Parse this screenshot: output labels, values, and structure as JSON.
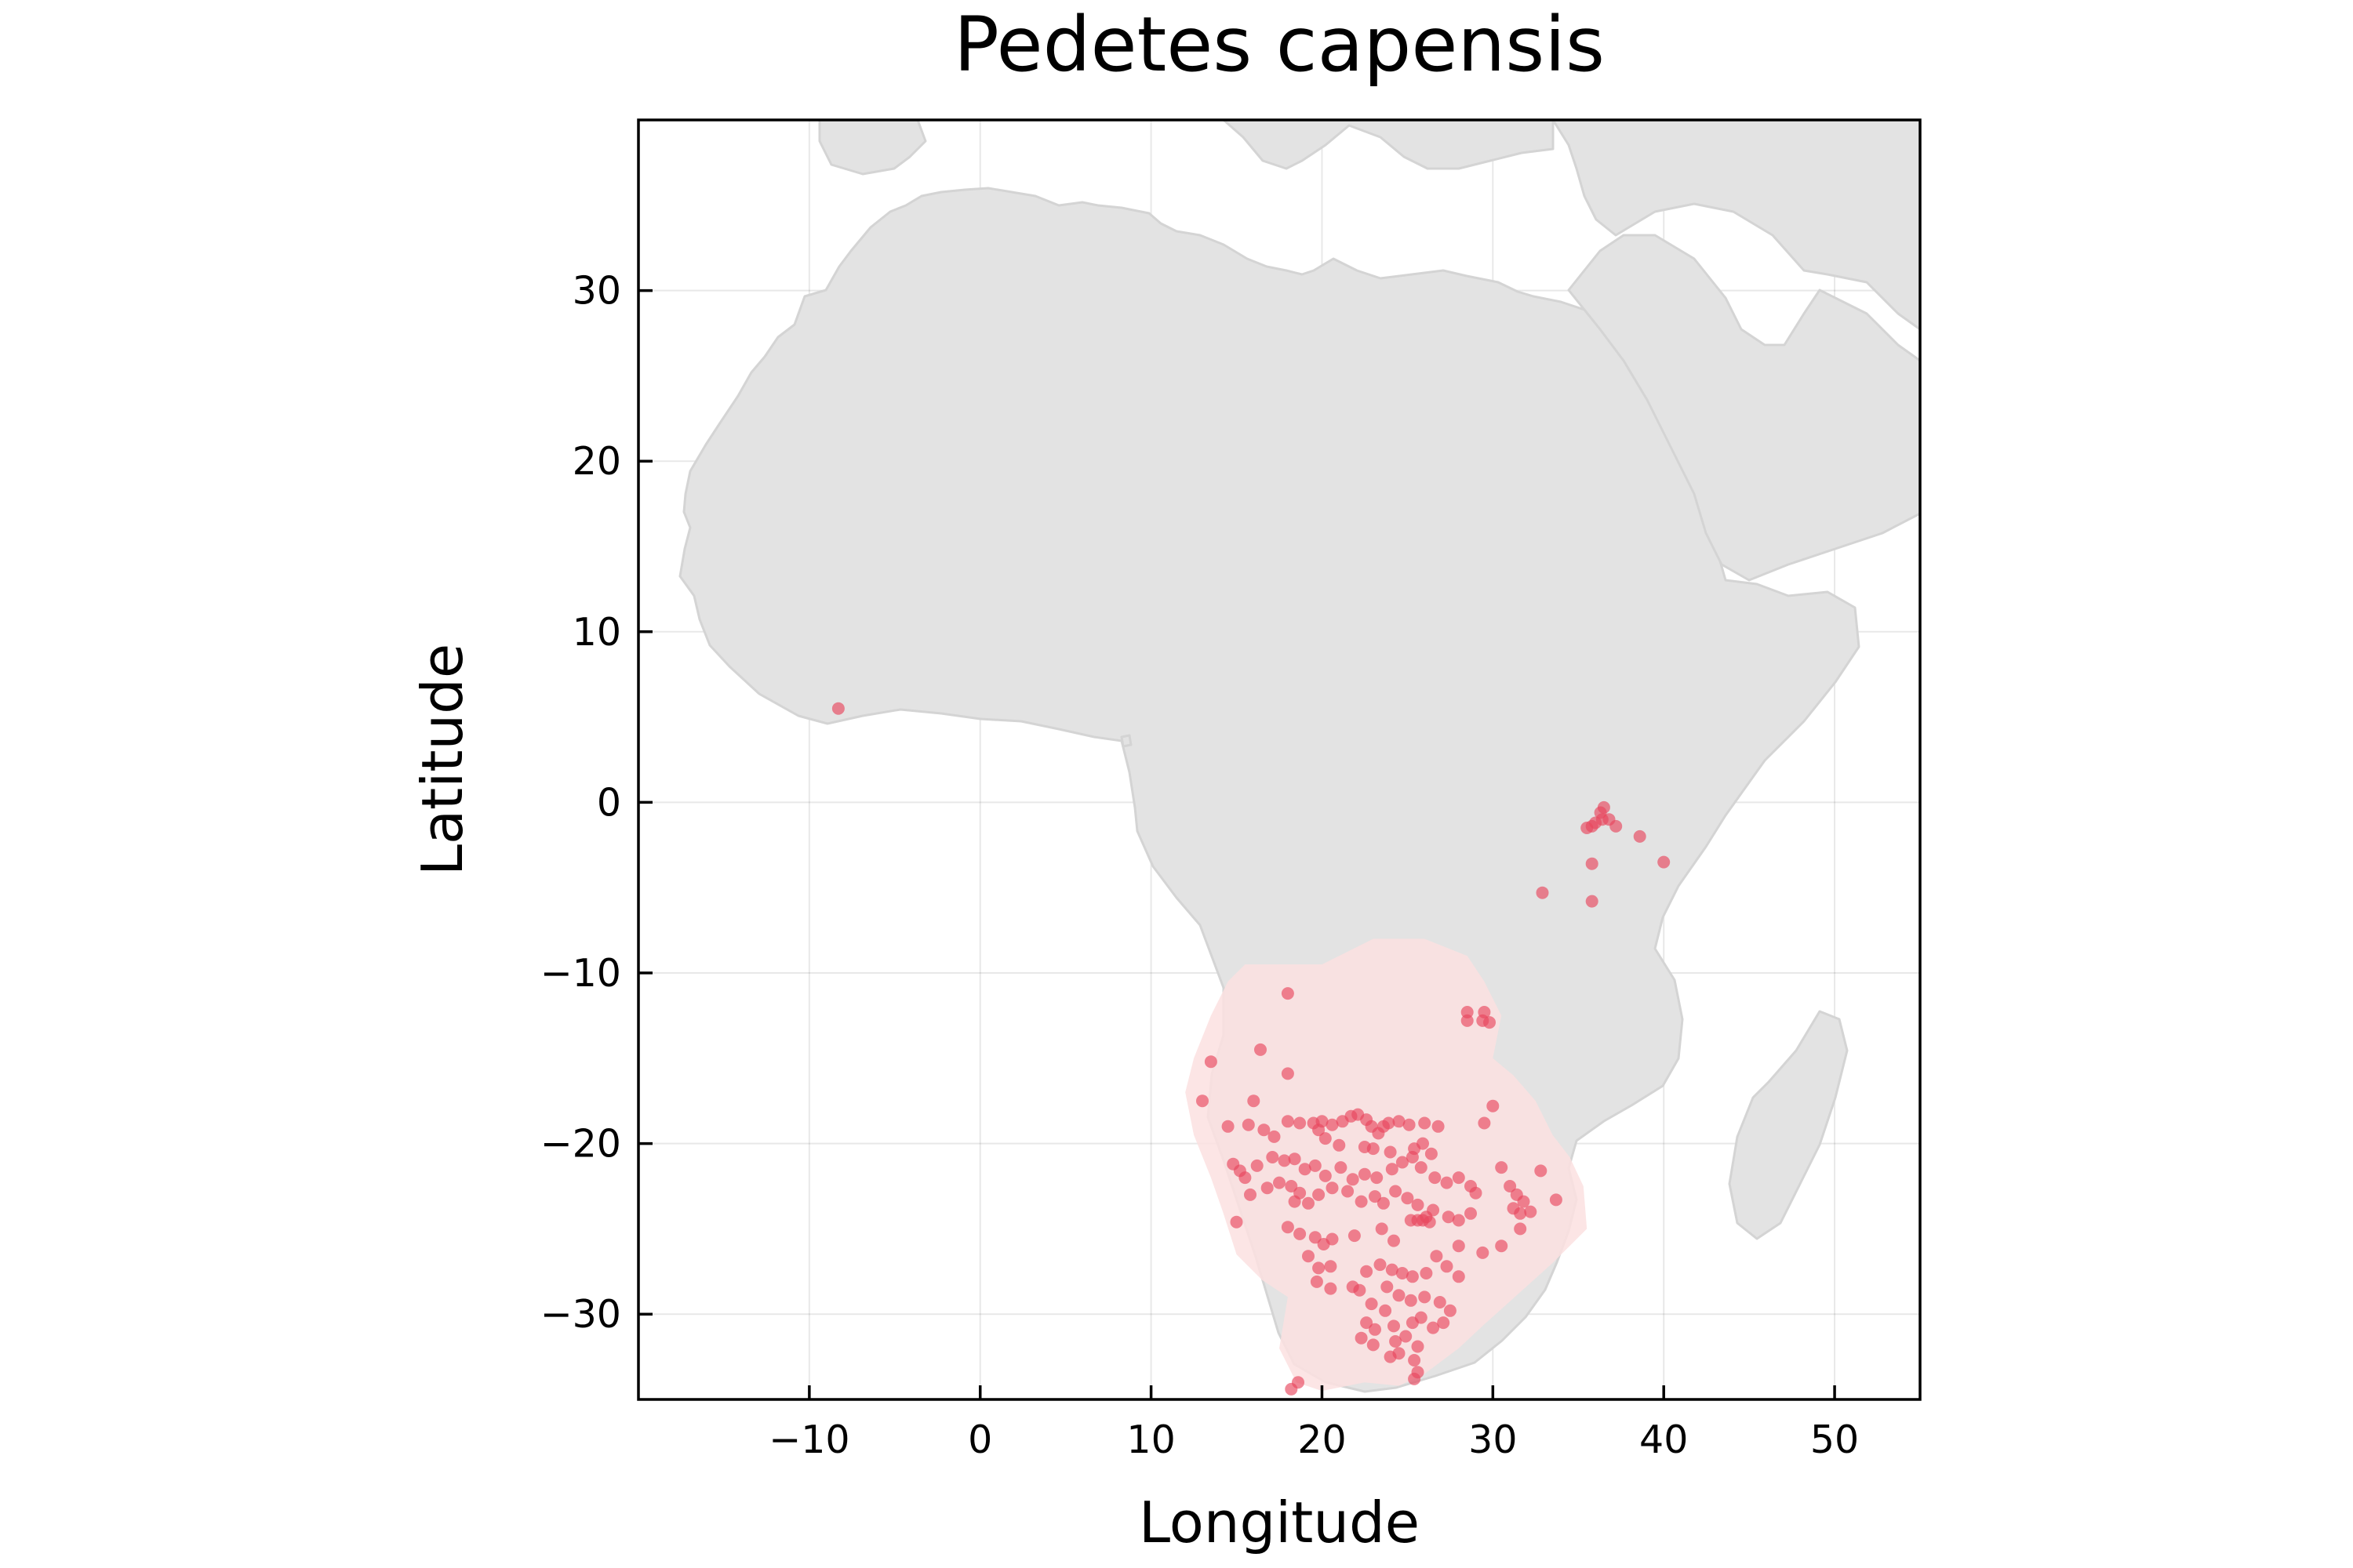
{
  "chart_data": {
    "type": "scatter",
    "title": "Pedetes capensis",
    "xlabel": "Longitude",
    "ylabel": "Latitude",
    "xlim": [
      -20,
      55
    ],
    "ylim": [
      -35,
      40
    ],
    "xticks": [
      -10,
      0,
      10,
      20,
      30,
      40,
      50
    ],
    "yticks": [
      -30,
      -20,
      -10,
      0,
      10,
      20,
      30
    ],
    "xtick_labels": [
      "−10",
      "0",
      "10",
      "20",
      "30",
      "40",
      "50"
    ],
    "ytick_labels": [
      "−30",
      "−20",
      "−10",
      "0",
      "10",
      "20",
      "30"
    ],
    "grid": true,
    "basemap": "Africa and surrounding land masses (grey)",
    "range_color": "#fbe1e1",
    "point_color": "#e8465e",
    "land_color": "#e3e3e3",
    "range_polygon": [
      [
        15.5,
        -9.5
      ],
      [
        20,
        -9.5
      ],
      [
        23,
        -8
      ],
      [
        26,
        -8
      ],
      [
        28.5,
        -9
      ],
      [
        29.5,
        -10.5
      ],
      [
        30.5,
        -12.5
      ],
      [
        30,
        -15
      ],
      [
        31.2,
        -16
      ],
      [
        32.5,
        -17.5
      ],
      [
        33.5,
        -19.5
      ],
      [
        34.5,
        -20.8
      ],
      [
        35.3,
        -22.5
      ],
      [
        35.5,
        -25
      ],
      [
        33.5,
        -27
      ],
      [
        31.5,
        -28.8
      ],
      [
        29.5,
        -30.6
      ],
      [
        28,
        -32
      ],
      [
        26,
        -33.5
      ],
      [
        24.5,
        -34.2
      ],
      [
        22.5,
        -34
      ],
      [
        20,
        -34.5
      ],
      [
        18.5,
        -34
      ],
      [
        17.5,
        -32
      ],
      [
        18,
        -29
      ],
      [
        16.5,
        -28
      ],
      [
        15,
        -26.5
      ],
      [
        14.2,
        -24
      ],
      [
        13.5,
        -22
      ],
      [
        12.5,
        -19.5
      ],
      [
        12,
        -17
      ],
      [
        12.5,
        -15
      ],
      [
        13.5,
        -12.5
      ],
      [
        14.5,
        -10.5
      ]
    ],
    "points": [
      [
        -8.3,
        5.5
      ],
      [
        36.5,
        -0.3
      ],
      [
        36.3,
        -0.6
      ],
      [
        36.8,
        -1.0
      ],
      [
        37.2,
        -1.4
      ],
      [
        36.0,
        -1.2
      ],
      [
        35.8,
        -1.4
      ],
      [
        36.4,
        -1.0
      ],
      [
        35.5,
        -1.5
      ],
      [
        38.6,
        -2.0
      ],
      [
        40.0,
        -3.5
      ],
      [
        35.8,
        -3.6
      ],
      [
        35.8,
        -5.8
      ],
      [
        32.9,
        -5.3
      ],
      [
        18.0,
        -11.2
      ],
      [
        28.5,
        -12.3
      ],
      [
        29.5,
        -12.3
      ],
      [
        28.5,
        -12.8
      ],
      [
        29.8,
        -12.9
      ],
      [
        29.4,
        -12.8
      ],
      [
        16.4,
        -14.5
      ],
      [
        13.5,
        -15.2
      ],
      [
        18.0,
        -15.9
      ],
      [
        16.0,
        -17.5
      ],
      [
        13.0,
        -17.5
      ],
      [
        30.0,
        -17.8
      ],
      [
        14.5,
        -19.0
      ],
      [
        15.7,
        -18.9
      ],
      [
        16.6,
        -19.2
      ],
      [
        17.2,
        -19.6
      ],
      [
        18.0,
        -18.7
      ],
      [
        18.7,
        -18.8
      ],
      [
        19.5,
        -18.8
      ],
      [
        20.0,
        -18.7
      ],
      [
        20.6,
        -18.9
      ],
      [
        21.2,
        -18.7
      ],
      [
        21.7,
        -18.4
      ],
      [
        22.1,
        -18.3
      ],
      [
        22.6,
        -18.6
      ],
      [
        22.9,
        -19.0
      ],
      [
        23.3,
        -19.4
      ],
      [
        23.6,
        -19.0
      ],
      [
        23.9,
        -18.8
      ],
      [
        24.5,
        -18.7
      ],
      [
        25.1,
        -18.9
      ],
      [
        26.0,
        -18.8
      ],
      [
        26.8,
        -19.0
      ],
      [
        29.5,
        -18.8
      ],
      [
        19.8,
        -19.2
      ],
      [
        20.2,
        -19.7
      ],
      [
        21.0,
        -20.1
      ],
      [
        22.5,
        -20.2
      ],
      [
        23.0,
        -20.3
      ],
      [
        24.0,
        -20.5
      ],
      [
        25.4,
        -20.3
      ],
      [
        25.9,
        -20.0
      ],
      [
        26.4,
        -20.6
      ],
      [
        14.8,
        -21.2
      ],
      [
        15.2,
        -21.6
      ],
      [
        15.5,
        -22.0
      ],
      [
        16.2,
        -21.3
      ],
      [
        17.1,
        -20.8
      ],
      [
        17.8,
        -21.0
      ],
      [
        18.4,
        -20.9
      ],
      [
        19.0,
        -21.5
      ],
      [
        19.6,
        -21.3
      ],
      [
        20.2,
        -21.9
      ],
      [
        21.1,
        -21.4
      ],
      [
        21.8,
        -22.1
      ],
      [
        22.5,
        -21.8
      ],
      [
        23.2,
        -22.0
      ],
      [
        24.1,
        -21.5
      ],
      [
        24.7,
        -21.1
      ],
      [
        25.3,
        -20.8
      ],
      [
        25.8,
        -21.4
      ],
      [
        26.6,
        -22.0
      ],
      [
        27.3,
        -22.3
      ],
      [
        28.0,
        -22.0
      ],
      [
        28.7,
        -22.5
      ],
      [
        29.0,
        -22.9
      ],
      [
        31.0,
        -22.5
      ],
      [
        31.4,
        -23.0
      ],
      [
        31.8,
        -23.4
      ],
      [
        31.2,
        -23.8
      ],
      [
        31.6,
        -24.1
      ],
      [
        32.2,
        -24.0
      ],
      [
        32.8,
        -21.6
      ],
      [
        33.7,
        -23.3
      ],
      [
        30.5,
        -21.4
      ],
      [
        15.8,
        -23.0
      ],
      [
        16.8,
        -22.6
      ],
      [
        17.5,
        -22.3
      ],
      [
        18.2,
        -22.5
      ],
      [
        18.7,
        -22.9
      ],
      [
        18.4,
        -23.4
      ],
      [
        19.2,
        -23.5
      ],
      [
        19.8,
        -23.0
      ],
      [
        20.6,
        -22.6
      ],
      [
        21.5,
        -22.8
      ],
      [
        22.3,
        -23.4
      ],
      [
        23.1,
        -23.1
      ],
      [
        23.6,
        -23.5
      ],
      [
        24.3,
        -22.8
      ],
      [
        25.0,
        -23.2
      ],
      [
        25.6,
        -23.6
      ],
      [
        26.5,
        -23.9
      ],
      [
        27.4,
        -24.3
      ],
      [
        28.0,
        -24.5
      ],
      [
        28.7,
        -24.1
      ],
      [
        25.2,
        -24.5
      ],
      [
        25.6,
        -24.5
      ],
      [
        25.9,
        -24.5
      ],
      [
        26.1,
        -24.3
      ],
      [
        26.3,
        -24.6
      ],
      [
        15.0,
        -24.6
      ],
      [
        18.0,
        -24.9
      ],
      [
        18.7,
        -25.3
      ],
      [
        19.6,
        -25.5
      ],
      [
        20.1,
        -25.9
      ],
      [
        20.6,
        -25.6
      ],
      [
        21.9,
        -25.4
      ],
      [
        23.5,
        -25.0
      ],
      [
        24.2,
        -25.7
      ],
      [
        26.7,
        -26.6
      ],
      [
        28.0,
        -26.0
      ],
      [
        29.4,
        -26.4
      ],
      [
        30.5,
        -26.0
      ],
      [
        31.6,
        -25.0
      ],
      [
        19.2,
        -26.6
      ],
      [
        19.8,
        -27.3
      ],
      [
        20.5,
        -27.2
      ],
      [
        22.6,
        -27.5
      ],
      [
        23.4,
        -27.1
      ],
      [
        24.1,
        -27.4
      ],
      [
        24.7,
        -27.6
      ],
      [
        25.3,
        -27.8
      ],
      [
        26.1,
        -27.6
      ],
      [
        27.3,
        -27.2
      ],
      [
        28.0,
        -27.8
      ],
      [
        21.8,
        -28.4
      ],
      [
        22.2,
        -28.6
      ],
      [
        23.8,
        -28.4
      ],
      [
        24.5,
        -28.9
      ],
      [
        25.2,
        -29.2
      ],
      [
        26.0,
        -29.0
      ],
      [
        26.9,
        -29.3
      ],
      [
        27.5,
        -29.8
      ],
      [
        19.7,
        -28.1
      ],
      [
        20.5,
        -28.5
      ],
      [
        22.9,
        -29.4
      ],
      [
        23.7,
        -29.8
      ],
      [
        22.6,
        -30.5
      ],
      [
        23.1,
        -30.9
      ],
      [
        24.2,
        -30.7
      ],
      [
        25.3,
        -30.5
      ],
      [
        25.8,
        -30.2
      ],
      [
        26.5,
        -30.8
      ],
      [
        27.1,
        -30.5
      ],
      [
        22.3,
        -31.4
      ],
      [
        23.0,
        -31.8
      ],
      [
        24.3,
        -31.6
      ],
      [
        24.9,
        -31.3
      ],
      [
        25.6,
        -31.9
      ],
      [
        24.5,
        -32.3
      ],
      [
        24.0,
        -32.5
      ],
      [
        25.4,
        -32.7
      ],
      [
        25.6,
        -33.4
      ],
      [
        25.4,
        -33.8
      ],
      [
        18.6,
        -34.0
      ],
      [
        18.2,
        -34.4
      ]
    ]
  }
}
